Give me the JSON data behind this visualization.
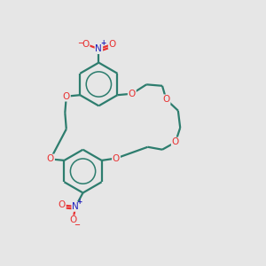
{
  "bg_color": "#e6e6e6",
  "bond_color": "#2d7d6e",
  "oxygen_color": "#e83030",
  "nitrogen_color": "#2222bb",
  "line_width": 1.6,
  "figsize": [
    3.0,
    3.0
  ],
  "dpi": 100,
  "xlim": [
    0,
    10
  ],
  "ylim": [
    0,
    10
  ]
}
